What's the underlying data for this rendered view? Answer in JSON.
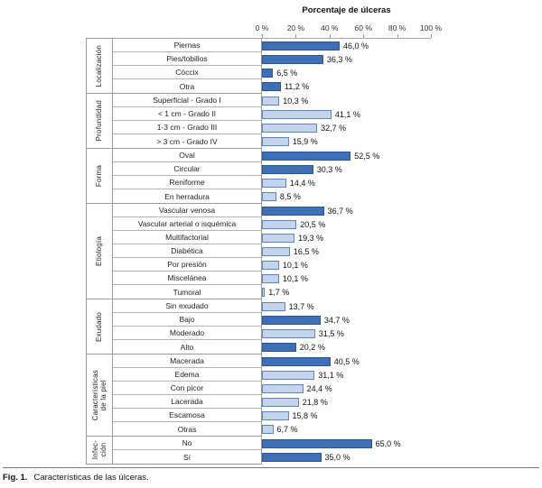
{
  "figure": {
    "axis_title": "Porcentaje de úlceras",
    "ticks": [
      "0 %",
      "20 %",
      "40 %",
      "60 %",
      "80 %",
      "100 %"
    ],
    "caption_label": "Fig. 1.",
    "caption_text": "Características de las úlceras."
  },
  "colors": {
    "bar_dark": "#3e6fb7",
    "bar_dark_border": "#2a5699",
    "bar_light": "#c3d4ec",
    "bar_light_border": "#5d85bd",
    "table_border": "#9a9a9a"
  },
  "chart_data": {
    "type": "bar",
    "orientation": "horizontal",
    "title": "Porcentaje de úlceras",
    "xlabel": "Porcentaje de úlceras",
    "xlim": [
      0,
      100
    ],
    "x_ticks": [
      0,
      20,
      40,
      60,
      80,
      100
    ],
    "grid": false,
    "legend": "none",
    "groups": [
      {
        "label": "Localización",
        "rows": [
          {
            "label": "Piernas",
            "value": 46.0,
            "display": "46,0 %",
            "shade": "dark"
          },
          {
            "label": "Pies/tobillos",
            "value": 36.3,
            "display": "36,3 %",
            "shade": "dark"
          },
          {
            "label": "Cóccix",
            "value": 6.5,
            "display": "6,5 %",
            "shade": "dark"
          },
          {
            "label": "Otra",
            "value": 11.2,
            "display": "11,2 %",
            "shade": "dark"
          }
        ]
      },
      {
        "label": "Profundidad",
        "rows": [
          {
            "label": "Superficial - Grado I",
            "value": 10.3,
            "display": "10,3 %",
            "shade": "light"
          },
          {
            "label": "< 1 cm - Grado II",
            "value": 41.1,
            "display": "41,1 %",
            "shade": "light"
          },
          {
            "label": "1-3 cm - Grado III",
            "value": 32.7,
            "display": "32,7 %",
            "shade": "light"
          },
          {
            "label": "> 3 cm - Grado IV",
            "value": 15.9,
            "display": "15,9 %",
            "shade": "light"
          }
        ]
      },
      {
        "label": "Forma",
        "rows": [
          {
            "label": "Oval",
            "value": 52.5,
            "display": "52,5 %",
            "shade": "dark"
          },
          {
            "label": "Circular",
            "value": 30.3,
            "display": "30,3 %",
            "shade": "dark"
          },
          {
            "label": "Reniforme",
            "value": 14.4,
            "display": "14,4 %",
            "shade": "light"
          },
          {
            "label": "En herradura",
            "value": 8.5,
            "display": "8,5 %",
            "shade": "light"
          }
        ]
      },
      {
        "label": "Etiología",
        "rows": [
          {
            "label": "Vascular venosa",
            "value": 36.7,
            "display": "36,7 %",
            "shade": "dark"
          },
          {
            "label": "Vascular arterial o isquémica",
            "value": 20.5,
            "display": "20,5 %",
            "shade": "light"
          },
          {
            "label": "Multifactorial",
            "value": 19.3,
            "display": "19,3 %",
            "shade": "light"
          },
          {
            "label": "Diabética",
            "value": 16.5,
            "display": "16,5 %",
            "shade": "light"
          },
          {
            "label": "Por presión",
            "value": 10.1,
            "display": "10,1 %",
            "shade": "light"
          },
          {
            "label": "Miscelánea",
            "value": 10.1,
            "display": "10,1 %",
            "shade": "light"
          },
          {
            "label": "Tumoral",
            "value": 1.7,
            "display": "1,7 %",
            "shade": "light"
          }
        ]
      },
      {
        "label": "Exudado",
        "rows": [
          {
            "label": "Sin exudado",
            "value": 13.7,
            "display": "13,7 %",
            "shade": "light"
          },
          {
            "label": "Bajo",
            "value": 34.7,
            "display": "34,7 %",
            "shade": "dark"
          },
          {
            "label": "Moderado",
            "value": 31.5,
            "display": "31,5 %",
            "shade": "light"
          },
          {
            "label": "Alto",
            "value": 20.2,
            "display": "20,2 %",
            "shade": "dark"
          }
        ]
      },
      {
        "label": "Características\nde la piel",
        "rows": [
          {
            "label": "Macerada",
            "value": 40.5,
            "display": "40,5 %",
            "shade": "dark"
          },
          {
            "label": "Edema",
            "value": 31.1,
            "display": "31,1 %",
            "shade": "light"
          },
          {
            "label": "Con picor",
            "value": 24.4,
            "display": "24,4 %",
            "shade": "light"
          },
          {
            "label": "Lacerada",
            "value": 21.8,
            "display": "21,8 %",
            "shade": "light"
          },
          {
            "label": "Escamosa",
            "value": 15.8,
            "display": "15,8 %",
            "shade": "light"
          },
          {
            "label": "Otras",
            "value": 6.7,
            "display": "6,7 %",
            "shade": "light"
          }
        ]
      },
      {
        "label": "Infec-\nción",
        "rows": [
          {
            "label": "No",
            "value": 65.0,
            "display": "65,0 %",
            "shade": "dark"
          },
          {
            "label": "Sí",
            "value": 35.0,
            "display": "35,0 %",
            "shade": "dark"
          }
        ]
      }
    ]
  }
}
